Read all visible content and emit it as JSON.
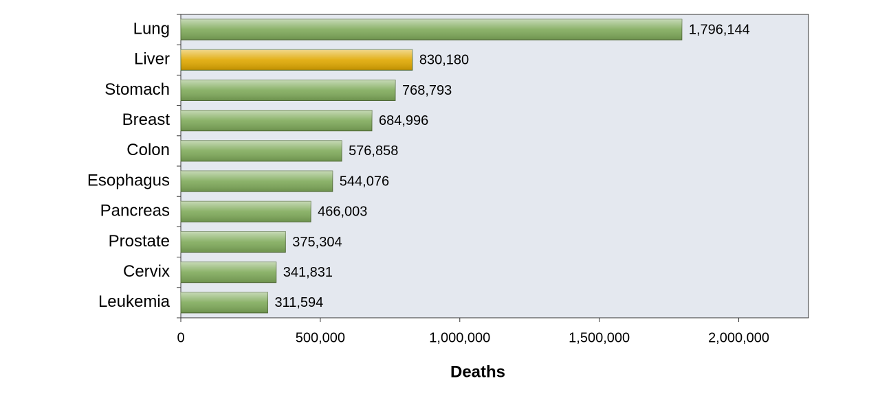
{
  "chart_data": {
    "type": "bar",
    "orientation": "horizontal",
    "x_label": "Deaths",
    "categories": [
      "Lung",
      "Liver",
      "Stomach",
      "Breast",
      "Colon",
      "Esophagus",
      "Pancreas",
      "Prostate",
      "Cervix",
      "Leukemia"
    ],
    "values": [
      1796144,
      830180,
      768793,
      684996,
      576858,
      544076,
      466003,
      375304,
      341831,
      311594
    ],
    "value_labels": [
      "1,796,144",
      "830,180",
      "768,793",
      "684,996",
      "576,858",
      "544,076",
      "466,003",
      "375,304",
      "341,831",
      "311,594"
    ],
    "colors": [
      "#7faa5a",
      "#e0a800",
      "#7faa5a",
      "#7faa5a",
      "#7faa5a",
      "#7faa5a",
      "#7faa5a",
      "#7faa5a",
      "#7faa5a",
      "#7faa5a"
    ],
    "plot_background": "#e4e8ef",
    "xlim": [
      0,
      2250000
    ],
    "xticks": [
      0,
      {
        "value": 500000,
        "label": "500,000"
      },
      {
        "value": 1000000,
        "label": "1,000,000"
      },
      {
        "value": 1500000,
        "label": "1,500,000"
      },
      {
        "value": 2000000,
        "label": "2,000,000"
      }
    ]
  }
}
